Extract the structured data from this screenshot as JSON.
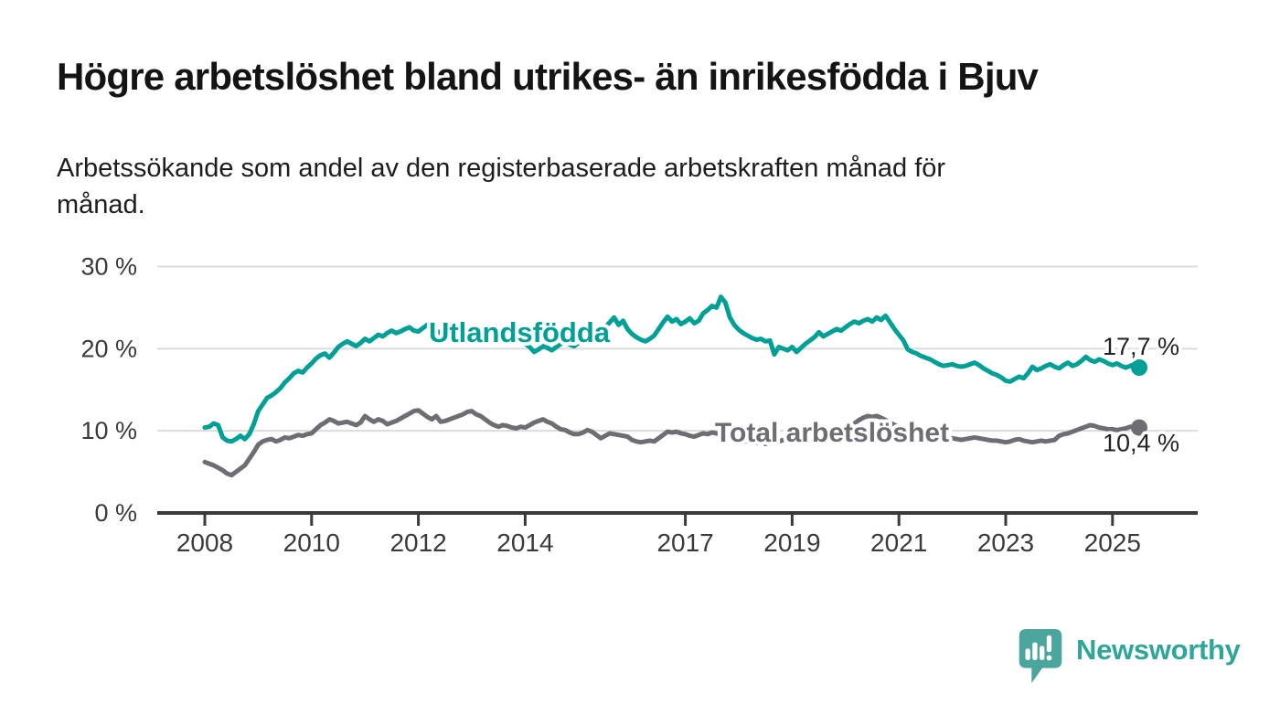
{
  "header": {
    "title": "Högre arbetslöshet bland utrikes- än inrikesfödda i Bjuv",
    "subtitle_line1": "Arbetssökande som andel av den registerbaserade arbetskraften månad för",
    "subtitle_line2": "månad."
  },
  "chart_data": {
    "type": "line",
    "title": "Högre arbetslöshet bland utrikes- än inrikesfödda i Bjuv",
    "subtitle": "Arbetssökande som andel av den registerbaserade arbetskraften månad för månad.",
    "y_unit": "%",
    "ylim": [
      0,
      30
    ],
    "grid": true,
    "x_start": "2008-01",
    "x_interval": "1 month",
    "x_end": "2025-07",
    "y_ticks": [
      {
        "value": 0,
        "label": "0 %"
      },
      {
        "value": 10,
        "label": "10 %"
      },
      {
        "value": 20,
        "label": "20 %"
      },
      {
        "value": 30,
        "label": "30 %"
      }
    ],
    "x_ticks": [
      {
        "year": 2008,
        "label": "2008"
      },
      {
        "year": 2010,
        "label": "2010"
      },
      {
        "year": 2012,
        "label": "2012"
      },
      {
        "year": 2014,
        "label": "2014"
      },
      {
        "year": 2017,
        "label": "2017"
      },
      {
        "year": 2019,
        "label": "2019"
      },
      {
        "year": 2021,
        "label": "2021"
      },
      {
        "year": 2023,
        "label": "2023"
      },
      {
        "year": 2025,
        "label": "2025"
      }
    ],
    "series": [
      {
        "name": "Utlandsfödda",
        "color": "#00a096",
        "end_label": "17,7 %",
        "end_value": 17.7,
        "values": [
          10.4,
          10.5,
          10.9,
          10.7,
          9.2,
          8.8,
          8.7,
          9.0,
          9.4,
          9.0,
          9.6,
          10.8,
          12.4,
          13.2,
          14.0,
          14.3,
          14.7,
          15.2,
          15.9,
          16.4,
          17.0,
          17.3,
          17.1,
          17.7,
          18.2,
          18.8,
          19.2,
          19.4,
          18.9,
          19.5,
          20.2,
          20.6,
          20.9,
          20.6,
          20.3,
          20.7,
          21.2,
          20.9,
          21.3,
          21.7,
          21.5,
          21.9,
          22.2,
          21.9,
          22.1,
          22.4,
          22.6,
          22.2,
          22.1,
          22.5,
          22.9,
          22.6,
          22.2,
          21.9,
          22.1,
          22.6,
          22.3,
          22.0,
          22.2,
          21.9,
          22.3,
          22.0,
          21.7,
          21.9,
          22.1,
          21.5,
          21.7,
          21.3,
          21.5,
          21.1,
          20.8,
          21.0,
          20.6,
          20.2,
          19.6,
          19.9,
          20.3,
          20.1,
          19.8,
          20.2,
          20.6,
          20.9,
          20.5,
          20.3,
          20.7,
          21.0,
          21.4,
          21.2,
          21.6,
          22.0,
          22.6,
          23.2,
          23.8,
          22.9,
          23.4,
          22.4,
          21.8,
          21.4,
          21.1,
          20.9,
          21.2,
          21.6,
          22.4,
          23.2,
          23.9,
          23.3,
          23.6,
          23.0,
          23.3,
          23.7,
          23.1,
          23.4,
          24.3,
          24.7,
          25.2,
          25.0,
          26.3,
          25.6,
          23.8,
          22.9,
          22.3,
          21.9,
          21.6,
          21.3,
          21.1,
          21.2,
          20.9,
          21.0,
          19.3,
          20.2,
          20.0,
          19.8,
          20.2,
          19.6,
          20.1,
          20.6,
          21.0,
          21.4,
          22.0,
          21.5,
          21.8,
          22.1,
          22.4,
          22.2,
          22.6,
          23.0,
          23.3,
          23.1,
          23.4,
          23.6,
          23.3,
          23.8,
          23.5,
          24.0,
          23.2,
          22.4,
          21.7,
          21.0,
          19.9,
          19.6,
          19.4,
          19.1,
          18.9,
          18.7,
          18.4,
          18.1,
          17.9,
          18.0,
          18.1,
          17.9,
          17.8,
          17.9,
          18.1,
          18.3,
          18.0,
          17.6,
          17.3,
          17.0,
          16.8,
          16.5,
          16.1,
          16.0,
          16.3,
          16.6,
          16.4,
          17.0,
          17.8,
          17.4,
          17.6,
          17.9,
          18.1,
          17.8,
          17.6,
          18.0,
          18.3,
          17.9,
          18.1,
          18.5,
          19.0,
          18.6,
          18.4,
          18.7,
          18.5,
          18.2,
          18.0,
          18.2,
          17.9,
          17.7,
          17.9,
          18.1,
          17.7
        ]
      },
      {
        "name": "Total arbetslöshet",
        "color": "#6f6c74",
        "end_label": "10,4 %",
        "end_value": 10.4,
        "values": [
          6.2,
          6.0,
          5.8,
          5.5,
          5.2,
          4.8,
          4.6,
          5.0,
          5.4,
          5.8,
          6.6,
          7.4,
          8.3,
          8.7,
          8.9,
          9.0,
          8.7,
          8.9,
          9.2,
          9.1,
          9.3,
          9.5,
          9.4,
          9.6,
          9.7,
          10.2,
          10.7,
          11.0,
          11.4,
          11.2,
          10.9,
          11.0,
          11.1,
          10.9,
          10.7,
          11.0,
          11.8,
          11.4,
          11.1,
          11.4,
          11.2,
          10.8,
          11.0,
          11.2,
          11.5,
          11.8,
          12.1,
          12.4,
          12.5,
          12.1,
          11.7,
          11.4,
          11.8,
          11.1,
          11.2,
          11.4,
          11.6,
          11.8,
          12.0,
          12.3,
          12.4,
          12.0,
          11.8,
          11.4,
          11.0,
          10.7,
          10.5,
          10.7,
          10.6,
          10.4,
          10.3,
          10.5,
          10.4,
          10.7,
          11.0,
          11.2,
          11.4,
          11.1,
          10.9,
          10.5,
          10.2,
          10.1,
          9.8,
          9.6,
          9.6,
          9.8,
          10.1,
          9.9,
          9.5,
          9.1,
          9.4,
          9.7,
          9.6,
          9.5,
          9.4,
          9.3,
          8.9,
          8.7,
          8.6,
          8.7,
          8.8,
          8.7,
          9.1,
          9.5,
          9.9,
          9.8,
          9.9,
          9.7,
          9.6,
          9.4,
          9.3,
          9.5,
          9.7,
          9.6,
          9.8,
          9.7,
          9.5,
          9.3,
          9.1,
          9.0,
          9.1,
          8.9,
          8.7,
          8.6,
          8.5,
          8.7,
          8.4,
          8.6,
          8.8,
          8.7,
          8.9,
          9.0,
          9.2,
          9.1,
          9.3,
          9.4,
          9.6,
          9.5,
          9.7,
          9.6,
          9.8,
          9.9,
          10.1,
          10.2,
          10.4,
          10.6,
          10.9,
          11.3,
          11.6,
          11.8,
          11.7,
          11.8,
          11.6,
          11.3,
          11.0,
          10.7,
          10.5,
          10.3,
          10.0,
          9.8,
          9.6,
          9.4,
          9.3,
          9.2,
          9.1,
          9.0,
          8.9,
          9.0,
          9.1,
          9.0,
          8.9,
          9.0,
          9.1,
          9.2,
          9.1,
          9.0,
          8.9,
          8.8,
          8.8,
          8.7,
          8.6,
          8.7,
          8.9,
          9.0,
          8.8,
          8.7,
          8.6,
          8.7,
          8.8,
          8.7,
          8.8,
          8.9,
          9.4,
          9.6,
          9.7,
          9.9,
          10.1,
          10.3,
          10.5,
          10.7,
          10.6,
          10.4,
          10.3,
          10.2,
          10.2,
          10.1,
          10.2,
          10.3,
          10.5,
          10.4,
          10.4
        ]
      }
    ],
    "colors": {
      "grid": "#dcdcdc",
      "axis": "#3a3a3a",
      "tick_label": "#3a3a3a",
      "end_label_text": "#222222",
      "series_utlandsfodda": "#00a096",
      "series_total": "#6f6c74"
    }
  },
  "branding": {
    "logo_text": "Newsworthy",
    "logo_color": "#2ea69c",
    "bubble_color": "#4ba59d"
  }
}
